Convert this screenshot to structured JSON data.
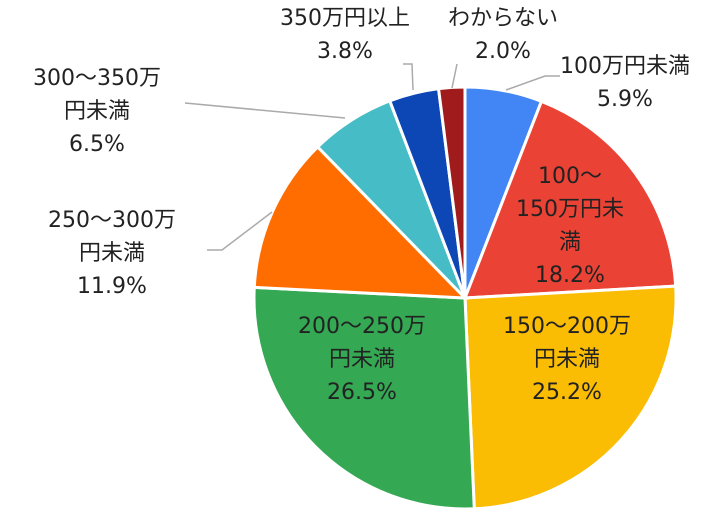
{
  "chart_data": {
    "type": "pie",
    "categories": [
      "100万円未満",
      "100～150万円未満",
      "150～200万円未満",
      "200～250万円未満",
      "250～300万円未満",
      "300～350万円未満",
      "350万円以上",
      "わからない"
    ],
    "values": [
      5.9,
      18.2,
      25.2,
      26.5,
      11.9,
      6.5,
      3.8,
      2.0
    ],
    "value_labels": [
      "5.9%",
      "18.2%",
      "25.2%",
      "26.5%",
      "11.9%",
      "6.5%",
      "3.8%",
      "2.0%"
    ],
    "colors": [
      "#4285f4",
      "#ea4335",
      "#fbbc04",
      "#34a853",
      "#ff6d01",
      "#46bdc6",
      "#0d47b5",
      "#a01c1c"
    ]
  }
}
